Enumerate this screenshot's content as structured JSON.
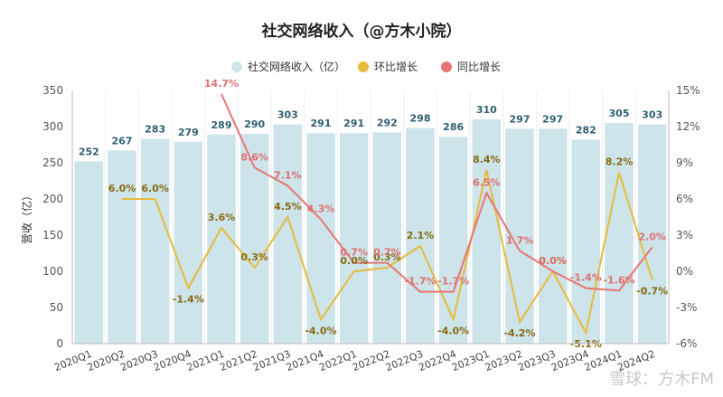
{
  "watermark": "雪球：方木FM",
  "chart_data": {
    "type": "bar",
    "title": "社交网络收入（@方木小院）",
    "ylabel": "营收（亿）",
    "ylim": [
      0,
      350
    ],
    "y2lim": [
      -6,
      15
    ],
    "yticks": [
      0,
      50,
      100,
      150,
      200,
      250,
      300,
      350
    ],
    "y2ticks": [
      "-6%",
      "-3%",
      "0%",
      "3%",
      "6%",
      "9%",
      "12%",
      "15%"
    ],
    "y2tick_values": [
      -6,
      -3,
      0,
      3,
      6,
      9,
      12,
      15
    ],
    "legend_position": "top-center",
    "categories": [
      "2020Q1",
      "2020Q2",
      "2020Q3",
      "2020Q4",
      "2021Q1",
      "2021Q2",
      "2021Q3",
      "2021Q4",
      "2022Q1",
      "2022Q2",
      "2022Q3",
      "2022Q4",
      "2023Q1",
      "2023Q2",
      "2023Q3",
      "2023Q4",
      "2024Q1",
      "2024Q2"
    ],
    "series": [
      {
        "name": "社交网络收入（亿）",
        "type": "bar",
        "color": "#cce4ea",
        "label_color": "#2f5f73",
        "values": [
          252,
          267,
          283,
          279,
          289,
          290,
          303,
          291,
          291,
          292,
          298,
          286,
          310,
          297,
          297,
          282,
          305,
          303
        ],
        "labels": [
          "252",
          "267",
          "283",
          "279",
          "289",
          "290",
          "303",
          "291",
          "291",
          "292",
          "298",
          "286",
          "310",
          "297",
          "297",
          "282",
          "305",
          "303"
        ]
      },
      {
        "name": "环比增长",
        "type": "line",
        "axis": "right",
        "color": "#e6bb3c",
        "label_color": "#8a6a10",
        "values": [
          null,
          6.0,
          6.0,
          -1.4,
          3.6,
          0.3,
          4.5,
          -4.0,
          0.0,
          0.3,
          2.1,
          -4.0,
          8.4,
          -4.2,
          0.0,
          -5.1,
          8.2,
          -0.7
        ],
        "labels": [
          "",
          "6.0%",
          "6.0%",
          "-1.4%",
          "3.6%",
          "0.3%",
          "4.5%",
          "-4.0%",
          "0.0%",
          "0.3%",
          "2.1%",
          "-4.0%",
          "8.4%",
          "-4.2%",
          "0.0%",
          "-5.1%",
          "8.2%",
          "-0.7%"
        ]
      },
      {
        "name": "同比增长",
        "type": "line",
        "axis": "right",
        "color": "#e87575",
        "label_color": "#e07070",
        "values": [
          null,
          null,
          null,
          null,
          14.7,
          8.6,
          7.1,
          4.3,
          0.7,
          0.7,
          -1.7,
          -1.7,
          6.5,
          1.7,
          0.0,
          -1.4,
          -1.6,
          2.0
        ],
        "labels": [
          "",
          "",
          "",
          "",
          "14.7%",
          "8.6%",
          "7.1%",
          "4.3%",
          "0.7%",
          "0.7%",
          "-1.7%",
          "-1.7%",
          "6.5%",
          "1.7%",
          "0.0%",
          "-1.4%",
          "-1.6%",
          "2.0%"
        ]
      }
    ]
  }
}
